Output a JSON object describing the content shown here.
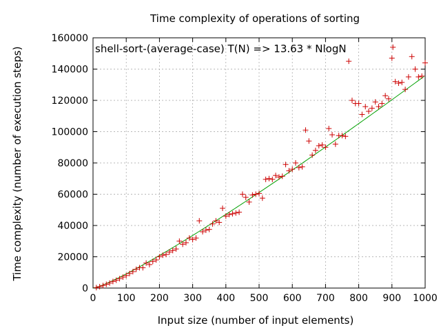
{
  "chart_data": {
    "type": "scatter",
    "title": "Time complexity of operations of sorting",
    "xlabel": "Input size (number of input elements)",
    "ylabel": "Time complexity (number of execution steps)",
    "annotation": "shell-sort-(average-case) T(N) => 13.63 * NlogN",
    "xlim": [
      0,
      1000
    ],
    "ylim": [
      0,
      160000
    ],
    "xticks": [
      0,
      100,
      200,
      300,
      400,
      500,
      600,
      700,
      800,
      900,
      1000
    ],
    "yticks": [
      0,
      20000,
      40000,
      60000,
      80000,
      100000,
      120000,
      140000,
      160000
    ],
    "grid": true,
    "fit_coefficient": 13.63,
    "colors": {
      "points": "#cc0000",
      "fit": "#00a000",
      "grid": "#a0a0a0"
    },
    "points": [
      [
        10,
        300
      ],
      [
        20,
        900
      ],
      [
        30,
        1600
      ],
      [
        40,
        2400
      ],
      [
        50,
        3200
      ],
      [
        60,
        4200
      ],
      [
        70,
        5000
      ],
      [
        80,
        6000
      ],
      [
        90,
        7000
      ],
      [
        100,
        8000
      ],
      [
        110,
        9300
      ],
      [
        120,
        10500
      ],
      [
        130,
        12000
      ],
      [
        140,
        13000
      ],
      [
        150,
        13000
      ],
      [
        160,
        16000
      ],
      [
        170,
        15000
      ],
      [
        180,
        17000
      ],
      [
        190,
        18000
      ],
      [
        200,
        20000
      ],
      [
        210,
        21000
      ],
      [
        220,
        21500
      ],
      [
        230,
        23000
      ],
      [
        240,
        24000
      ],
      [
        250,
        25000
      ],
      [
        260,
        30000
      ],
      [
        270,
        28000
      ],
      [
        280,
        29000
      ],
      [
        290,
        32000
      ],
      [
        300,
        31000
      ],
      [
        310,
        32000
      ],
      [
        320,
        43000
      ],
      [
        330,
        36000
      ],
      [
        340,
        37000
      ],
      [
        350,
        37500
      ],
      [
        360,
        41000
      ],
      [
        370,
        43000
      ],
      [
        380,
        42000
      ],
      [
        390,
        51000
      ],
      [
        400,
        46000
      ],
      [
        410,
        47000
      ],
      [
        420,
        47500
      ],
      [
        430,
        48000
      ],
      [
        440,
        48500
      ],
      [
        450,
        60000
      ],
      [
        460,
        58000
      ],
      [
        470,
        55000
      ],
      [
        480,
        59500
      ],
      [
        490,
        60000
      ],
      [
        500,
        60500
      ],
      [
        510,
        57500
      ],
      [
        520,
        69500
      ],
      [
        530,
        70000
      ],
      [
        540,
        69500
      ],
      [
        550,
        72000
      ],
      [
        560,
        71000
      ],
      [
        570,
        71500
      ],
      [
        580,
        79000
      ],
      [
        590,
        75000
      ],
      [
        600,
        76000
      ],
      [
        610,
        80000
      ],
      [
        620,
        77000
      ],
      [
        630,
        77500
      ],
      [
        640,
        101000
      ],
      [
        650,
        94000
      ],
      [
        660,
        85000
      ],
      [
        670,
        88000
      ],
      [
        680,
        91000
      ],
      [
        690,
        91500
      ],
      [
        700,
        90000
      ],
      [
        710,
        102000
      ],
      [
        720,
        98000
      ],
      [
        730,
        92000
      ],
      [
        740,
        97500
      ],
      [
        750,
        97500
      ],
      [
        760,
        97000
      ],
      [
        770,
        145000
      ],
      [
        780,
        120000
      ],
      [
        790,
        118000
      ],
      [
        800,
        118000
      ],
      [
        810,
        111000
      ],
      [
        820,
        116000
      ],
      [
        830,
        113000
      ],
      [
        840,
        115000
      ],
      [
        850,
        119000
      ],
      [
        860,
        116000
      ],
      [
        870,
        118000
      ],
      [
        880,
        123000
      ],
      [
        890,
        121000
      ],
      [
        900,
        147000
      ],
      [
        903,
        154000
      ],
      [
        910,
        132000
      ],
      [
        920,
        131000
      ],
      [
        930,
        131500
      ],
      [
        940,
        127000
      ],
      [
        950,
        135000
      ],
      [
        960,
        148000
      ],
      [
        970,
        140000
      ],
      [
        980,
        135000
      ],
      [
        990,
        135500
      ],
      [
        1000,
        144000
      ]
    ]
  }
}
